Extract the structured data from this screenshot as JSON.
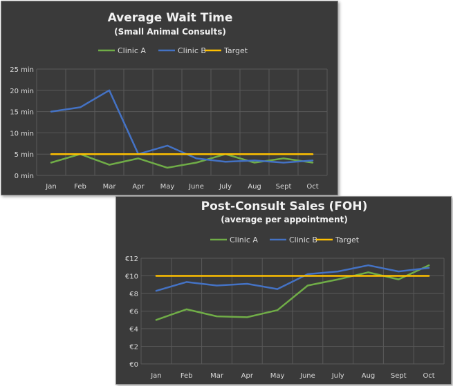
{
  "chart_data": [
    {
      "type": "line",
      "title": "Average Wait Time",
      "subtitle": "(Small Animal Consults)",
      "categories": [
        "Jan",
        "Feb",
        "Mar",
        "Apr",
        "May",
        "June",
        "July",
        "Aug",
        "Sept",
        "Oct"
      ],
      "y_ticks": [
        "0 min",
        "5 min",
        "10 min",
        "15 min",
        "20 min",
        "25 min"
      ],
      "ylim": [
        0,
        25
      ],
      "grid": true,
      "legend_position": "top",
      "series": [
        {
          "name": "Clinic A",
          "color": "#70ad47",
          "values": [
            3,
            5,
            2.5,
            4,
            1.8,
            3,
            5,
            3,
            4,
            3
          ]
        },
        {
          "name": "Clinic B",
          "color": "#4472c4",
          "values": [
            15,
            16,
            20,
            5,
            7,
            4,
            3.2,
            3.5,
            3,
            3.5
          ]
        },
        {
          "name": "Target",
          "color": "#ffc000",
          "values": [
            5,
            5,
            5,
            5,
            5,
            5,
            5,
            5,
            5,
            5
          ]
        }
      ]
    },
    {
      "type": "line",
      "title": "Post-Consult Sales (FOH)",
      "subtitle": "(average per appointment)",
      "categories": [
        "Jan",
        "Feb",
        "Mar",
        "Apr",
        "May",
        "June",
        "July",
        "Aug",
        "Sept",
        "Oct"
      ],
      "y_ticks": [
        "€0",
        "€2",
        "€4",
        "€6",
        "€8",
        "€10",
        "€12"
      ],
      "ylim": [
        0,
        12
      ],
      "grid": true,
      "legend_position": "top",
      "series": [
        {
          "name": "Clinic A",
          "color": "#70ad47",
          "values": [
            5.0,
            6.2,
            5.4,
            5.3,
            6.1,
            8.9,
            9.6,
            10.4,
            9.6,
            11.2
          ]
        },
        {
          "name": "Clinic B",
          "color": "#4472c4",
          "values": [
            8.3,
            9.3,
            8.9,
            9.1,
            8.5,
            10.2,
            10.5,
            11.2,
            10.5,
            10.9
          ]
        },
        {
          "name": "Target",
          "color": "#ffc000",
          "values": [
            10,
            10,
            10,
            10,
            10,
            10,
            10,
            10,
            10,
            10
          ]
        }
      ]
    }
  ]
}
